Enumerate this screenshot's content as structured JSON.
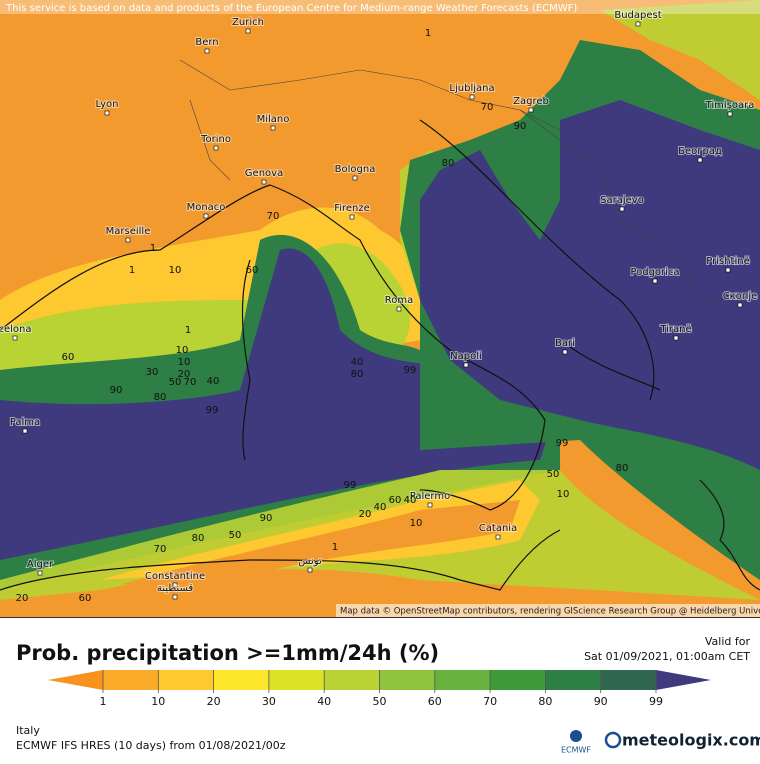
{
  "map": {
    "attribution_top": "This service is based on data and products of the European Centre for Medium-range Weather Forecasts (ECMWF)",
    "attribution_bottom": "Map data © OpenStreetMap contributors, rendering GIScience Research Group @ Heidelberg University",
    "cities": [
      "Budapest",
      "Bern",
      "Zurich",
      "Lyon",
      "Milano",
      "Ljubljana",
      "Zagreb",
      "Timișoara",
      "Torino",
      "Београд",
      "Genova",
      "Bologna",
      "Sarajevo",
      "Monaco",
      "Firenze",
      "Marseille",
      "Podgorica",
      "Prishtinë",
      "Roma",
      "Скопје",
      "celona",
      "Tiranë",
      "Napoli",
      "Bari",
      "Palma",
      "Palermo",
      "Catania",
      "Alger",
      "Constantine",
      "قسنطينة",
      "تونس"
    ],
    "contour_labels": [
      1,
      1,
      70,
      60,
      10,
      1,
      10,
      60,
      1,
      10,
      20,
      30,
      50,
      70,
      40,
      90,
      80,
      99,
      40,
      80,
      99,
      80,
      90,
      70,
      40,
      99,
      50,
      10,
      80,
      60,
      20,
      40,
      90,
      50,
      70,
      10,
      1,
      99,
      80,
      60,
      20
    ]
  },
  "legend": {
    "title": "Prob. precipitation >=1mm/24h (%)",
    "ticks": [
      1,
      10,
      20,
      30,
      40,
      50,
      60,
      70,
      80,
      90,
      99
    ],
    "colors": [
      "#f7931e",
      "#fbab2a",
      "#fdc830",
      "#fde62c",
      "#dde229",
      "#b9d334",
      "#8fc43e",
      "#67b13f",
      "#3c9a39",
      "#2e7f45",
      "#2f6651",
      "#3f3a7d"
    ]
  },
  "valid": {
    "label": "Valid for",
    "time": "Sat 01/09/2021, 01:00am CET"
  },
  "footer": {
    "region": "Italy",
    "model": "ECMWF IFS HRES (10 days) from 01/08/2021/00z",
    "logo": "ECMWF",
    "brand": "meteologix.com"
  }
}
